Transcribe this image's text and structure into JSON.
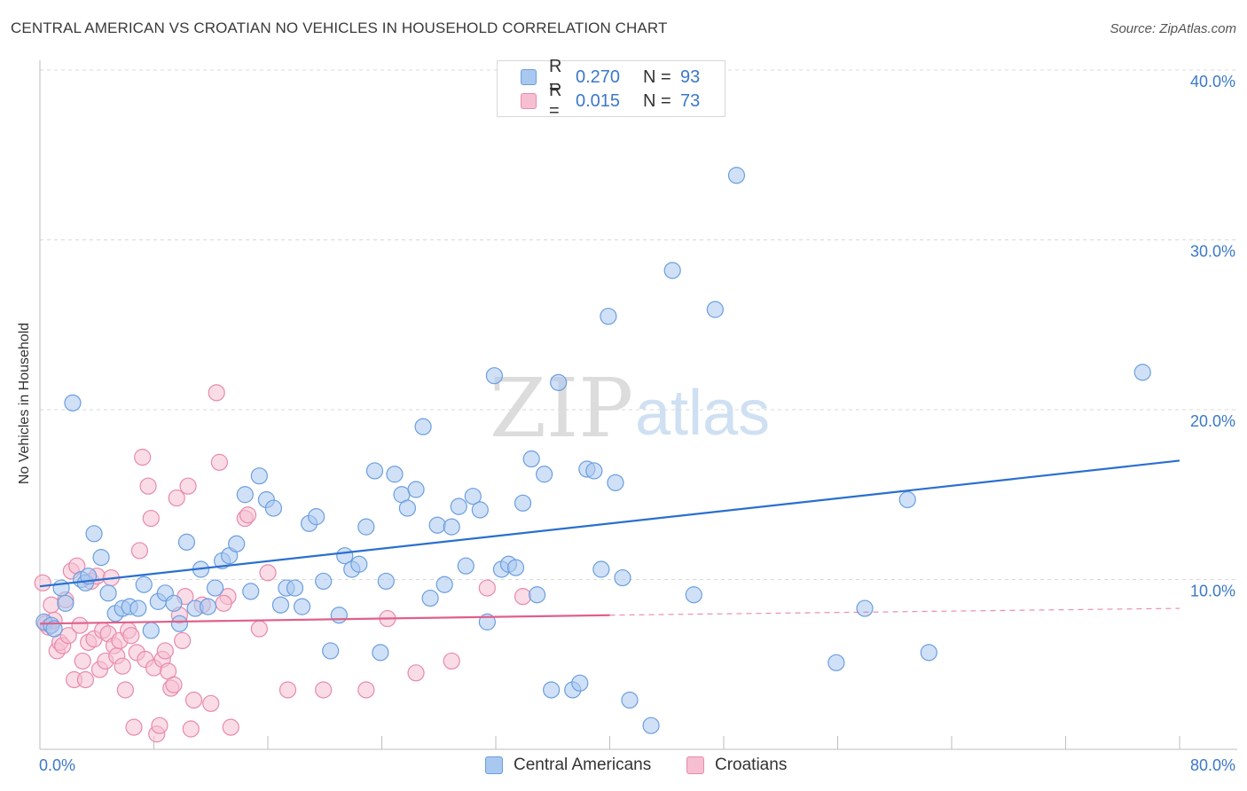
{
  "header": {
    "title": "CENTRAL AMERICAN VS CROATIAN NO VEHICLES IN HOUSEHOLD CORRELATION CHART",
    "source": "Source: ZipAtlas.com"
  },
  "watermark": {
    "zip": "ZIP",
    "atlas": "atlas"
  },
  "legend_top": {
    "rows": [
      {
        "r_label": "R =",
        "r_value": "0.270",
        "n_label": "N =",
        "n_value": "93"
      },
      {
        "r_label": "R =",
        "r_value": "0.015",
        "n_label": "N =",
        "n_value": "73"
      }
    ]
  },
  "legend_bottom": {
    "items": [
      {
        "label": "Central Americans"
      },
      {
        "label": "Croatians"
      }
    ]
  },
  "colors": {
    "blue_fill": "#a9c8f0",
    "blue_stroke": "#6b9ee0",
    "blue_line": "#2a6fcf",
    "pink_fill": "#f6bfd1",
    "pink_stroke": "#e88aaa",
    "pink_line": "#e0608a",
    "axis_text": "#3b78c9",
    "grid": "#d9d9d9"
  },
  "chart_data": {
    "type": "scatter",
    "title": "CENTRAL AMERICAN VS CROATIAN NO VEHICLES IN HOUSEHOLD CORRELATION CHART",
    "xlabel": "",
    "ylabel": "No Vehicles in Household",
    "xlim": [
      0,
      80
    ],
    "ylim": [
      0,
      40
    ],
    "x_tick_labels": [
      "0.0%",
      "80.0%"
    ],
    "y_ticks": [
      10,
      20,
      30,
      40
    ],
    "y_tick_labels": [
      "10.0%",
      "20.0%",
      "30.0%",
      "40.0%"
    ],
    "grid": true,
    "legend_position": "top-center",
    "series": [
      {
        "name": "Central Americans",
        "r": 0.27,
        "n": 93,
        "trend": {
          "x": [
            0,
            80
          ],
          "y": [
            9.6,
            17.0
          ]
        },
        "points": [
          [
            0.3,
            7.5
          ],
          [
            0.8,
            7.3
          ],
          [
            1.0,
            7.1
          ],
          [
            1.5,
            9.5
          ],
          [
            1.8,
            8.6
          ],
          [
            2.3,
            20.4
          ],
          [
            2.9,
            10.0
          ],
          [
            3.2,
            9.8
          ],
          [
            3.4,
            10.2
          ],
          [
            3.8,
            12.7
          ],
          [
            4.3,
            11.3
          ],
          [
            4.8,
            9.2
          ],
          [
            5.3,
            8.0
          ],
          [
            5.8,
            8.3
          ],
          [
            6.3,
            8.4
          ],
          [
            6.9,
            8.3
          ],
          [
            7.3,
            9.7
          ],
          [
            7.8,
            7.0
          ],
          [
            8.3,
            8.7
          ],
          [
            8.8,
            9.2
          ],
          [
            9.4,
            8.6
          ],
          [
            9.8,
            7.4
          ],
          [
            10.3,
            12.2
          ],
          [
            10.9,
            8.3
          ],
          [
            11.3,
            10.6
          ],
          [
            11.8,
            8.4
          ],
          [
            12.3,
            9.5
          ],
          [
            12.8,
            11.1
          ],
          [
            13.3,
            11.4
          ],
          [
            13.8,
            12.1
          ],
          [
            14.4,
            15.0
          ],
          [
            14.8,
            9.3
          ],
          [
            15.4,
            16.1
          ],
          [
            15.9,
            14.7
          ],
          [
            16.4,
            14.2
          ],
          [
            16.9,
            8.5
          ],
          [
            17.3,
            9.5
          ],
          [
            17.9,
            9.5
          ],
          [
            18.4,
            8.4
          ],
          [
            18.9,
            13.3
          ],
          [
            19.4,
            13.7
          ],
          [
            19.9,
            9.9
          ],
          [
            20.4,
            5.8
          ],
          [
            21.0,
            7.9
          ],
          [
            21.4,
            11.4
          ],
          [
            21.9,
            10.6
          ],
          [
            22.4,
            10.9
          ],
          [
            22.9,
            13.1
          ],
          [
            23.5,
            16.4
          ],
          [
            23.9,
            5.7
          ],
          [
            24.3,
            9.9
          ],
          [
            24.9,
            16.2
          ],
          [
            25.4,
            15.0
          ],
          [
            25.8,
            14.2
          ],
          [
            26.4,
            15.3
          ],
          [
            26.9,
            19.0
          ],
          [
            27.4,
            8.9
          ],
          [
            27.9,
            13.2
          ],
          [
            28.4,
            9.7
          ],
          [
            28.9,
            13.1
          ],
          [
            29.4,
            14.3
          ],
          [
            29.9,
            10.8
          ],
          [
            30.4,
            14.9
          ],
          [
            30.9,
            14.1
          ],
          [
            31.4,
            7.5
          ],
          [
            31.9,
            22.0
          ],
          [
            32.4,
            10.6
          ],
          [
            32.9,
            10.9
          ],
          [
            33.4,
            10.7
          ],
          [
            33.9,
            14.5
          ],
          [
            34.5,
            17.1
          ],
          [
            34.9,
            9.1
          ],
          [
            35.4,
            16.2
          ],
          [
            35.9,
            3.5
          ],
          [
            36.4,
            21.6
          ],
          [
            37.4,
            3.5
          ],
          [
            37.9,
            3.9
          ],
          [
            38.4,
            16.5
          ],
          [
            38.9,
            16.4
          ],
          [
            39.4,
            10.6
          ],
          [
            39.9,
            25.5
          ],
          [
            40.4,
            15.7
          ],
          [
            40.9,
            10.1
          ],
          [
            41.4,
            2.9
          ],
          [
            42.9,
            1.4
          ],
          [
            44.4,
            28.2
          ],
          [
            45.9,
            9.1
          ],
          [
            47.4,
            25.9
          ],
          [
            48.9,
            33.8
          ],
          [
            55.9,
            5.1
          ],
          [
            57.9,
            8.3
          ],
          [
            60.9,
            14.7
          ],
          [
            62.4,
            5.7
          ],
          [
            77.4,
            22.2
          ]
        ]
      },
      {
        "name": "Croatians",
        "r": 0.015,
        "n": 73,
        "trend": {
          "x": [
            0,
            40
          ],
          "y": [
            7.4,
            7.9
          ]
        },
        "trend_extension": {
          "x": [
            40,
            80
          ],
          "y": [
            7.9,
            8.3
          ]
        },
        "points": [
          [
            0.2,
            9.8
          ],
          [
            0.4,
            7.4
          ],
          [
            0.6,
            7.2
          ],
          [
            0.8,
            8.5
          ],
          [
            1.0,
            7.6
          ],
          [
            1.2,
            5.8
          ],
          [
            1.4,
            6.3
          ],
          [
            1.6,
            6.1
          ],
          [
            1.8,
            8.8
          ],
          [
            2.0,
            6.7
          ],
          [
            2.2,
            10.5
          ],
          [
            2.4,
            4.1
          ],
          [
            2.6,
            10.8
          ],
          [
            2.8,
            7.3
          ],
          [
            3.0,
            5.2
          ],
          [
            3.2,
            4.1
          ],
          [
            3.4,
            6.3
          ],
          [
            3.6,
            9.9
          ],
          [
            3.8,
            6.5
          ],
          [
            4.0,
            10.2
          ],
          [
            4.2,
            4.7
          ],
          [
            4.4,
            7.0
          ],
          [
            4.6,
            5.2
          ],
          [
            4.8,
            6.8
          ],
          [
            5.0,
            10.1
          ],
          [
            5.2,
            6.1
          ],
          [
            5.4,
            5.5
          ],
          [
            5.6,
            6.4
          ],
          [
            5.8,
            4.9
          ],
          [
            6.0,
            3.5
          ],
          [
            6.2,
            7.0
          ],
          [
            6.4,
            6.7
          ],
          [
            6.6,
            1.3
          ],
          [
            6.8,
            5.7
          ],
          [
            7.0,
            11.7
          ],
          [
            7.2,
            17.2
          ],
          [
            7.4,
            5.3
          ],
          [
            7.6,
            15.5
          ],
          [
            7.8,
            13.6
          ],
          [
            8.0,
            4.8
          ],
          [
            8.2,
            0.9
          ],
          [
            8.4,
            1.4
          ],
          [
            8.6,
            5.3
          ],
          [
            8.8,
            5.8
          ],
          [
            9.0,
            4.6
          ],
          [
            9.2,
            3.6
          ],
          [
            9.4,
            3.8
          ],
          [
            9.6,
            14.8
          ],
          [
            9.8,
            7.9
          ],
          [
            10.0,
            6.4
          ],
          [
            10.2,
            9.0
          ],
          [
            10.4,
            15.5
          ],
          [
            10.6,
            1.2
          ],
          [
            10.8,
            2.9
          ],
          [
            12.0,
            2.7
          ],
          [
            12.4,
            21.0
          ],
          [
            12.6,
            16.9
          ],
          [
            13.2,
            9.0
          ],
          [
            13.4,
            1.3
          ],
          [
            14.4,
            13.6
          ],
          [
            14.6,
            13.8
          ],
          [
            15.4,
            7.1
          ],
          [
            16.0,
            10.4
          ],
          [
            17.4,
            3.5
          ],
          [
            19.9,
            3.5
          ],
          [
            22.9,
            3.5
          ],
          [
            24.4,
            7.7
          ],
          [
            26.4,
            4.5
          ],
          [
            28.9,
            5.2
          ],
          [
            31.4,
            9.5
          ],
          [
            33.9,
            9.0
          ],
          [
            11.4,
            8.5
          ],
          [
            12.9,
            8.6
          ]
        ]
      }
    ]
  }
}
